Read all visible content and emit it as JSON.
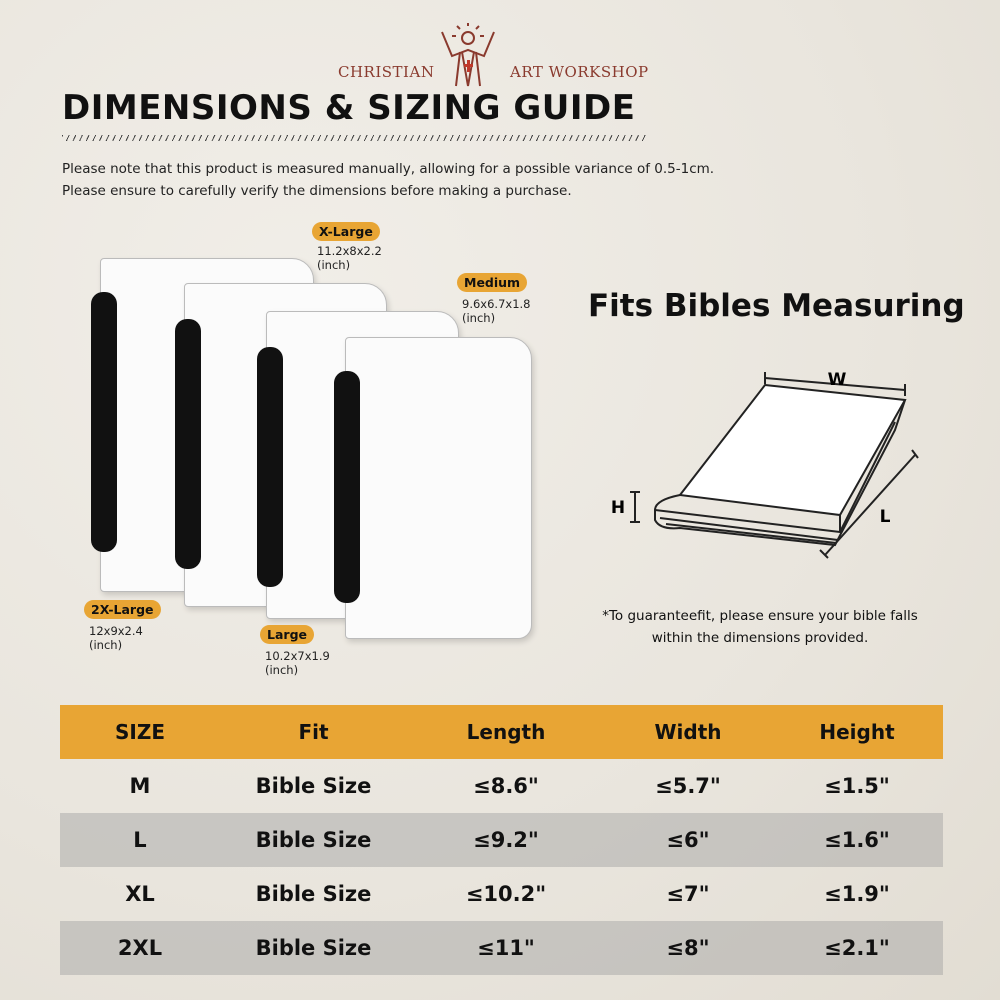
{
  "brand": {
    "left": "CHRISTIAN",
    "right": "ART WORKSHOP",
    "logo_color": "#8a3a2e"
  },
  "title": "DIMENSIONS & SIZING GUIDE",
  "notes": [
    "Please note that this product is measured manually, allowing for a possible variance of 0.5-1cm.",
    "Please ensure to carefully verify the dimensions before making a purchase."
  ],
  "sizes": [
    {
      "label": "X-Large",
      "dims": "11.2x8x2.2",
      "unit": "(inch)"
    },
    {
      "label": "Medium",
      "dims": "9.6x6.7x1.8",
      "unit": "(inch)"
    },
    {
      "label": "2X-Large",
      "dims": "12x9x2.4",
      "unit": "(inch)"
    },
    {
      "label": "Large",
      "dims": "10.2x7x1.9",
      "unit": "(inch)"
    }
  ],
  "fits": {
    "heading": "Fits Bibles Measuring",
    "w": "W",
    "h": "H",
    "l": "L",
    "note1": "*To guaranteefit, please ensure your bible falls",
    "note2": "within the dimensions provided."
  },
  "table": {
    "headers": [
      "SIZE",
      "Fit",
      "Length",
      "Width",
      "Height"
    ],
    "rows": [
      [
        "M",
        "Bible Size",
        "≤8.6\"",
        "≤5.7\"",
        "≤1.5\""
      ],
      [
        "L",
        "Bible Size",
        "≤9.2\"",
        "≤6\"",
        "≤1.6\""
      ],
      [
        "XL",
        "Bible Size",
        "≤10.2\"",
        "≤7\"",
        "≤1.9\""
      ],
      [
        "2XL",
        "Bible Size",
        "≤11\"",
        "≤8\"",
        "≤2.1\""
      ]
    ]
  },
  "colors": {
    "accent": "#e8a534",
    "row_alt": "#bdbbb6"
  }
}
